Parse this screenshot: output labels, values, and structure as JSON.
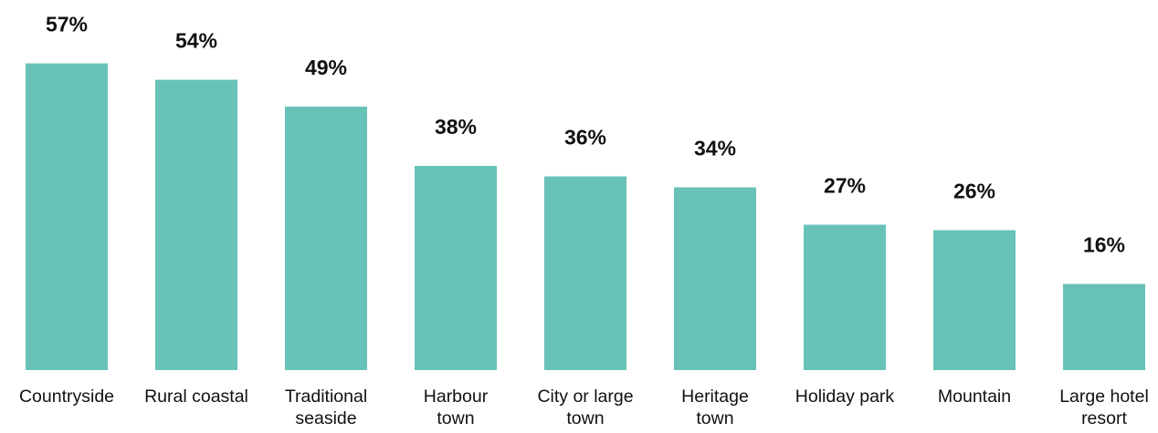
{
  "chart_data": {
    "type": "bar",
    "categories": [
      [
        "Countryside"
      ],
      [
        "Rural coastal"
      ],
      [
        "Traditional",
        "seaside"
      ],
      [
        "Harbour",
        "town"
      ],
      [
        "City or large",
        "town"
      ],
      [
        "Heritage",
        "town"
      ],
      [
        "Holiday park"
      ],
      [
        "Mountain"
      ],
      [
        "Large hotel",
        "resort"
      ]
    ],
    "values": [
      57,
      54,
      49,
      38,
      36,
      34,
      27,
      26,
      16
    ],
    "value_labels": [
      "57%",
      "54%",
      "49%",
      "38%",
      "36%",
      "34%",
      "27%",
      "26%",
      "16%"
    ],
    "bar_color": "#68c2b8",
    "ylim": [
      0,
      60
    ],
    "grid": false,
    "title": "",
    "xlabel": "",
    "ylabel": ""
  }
}
